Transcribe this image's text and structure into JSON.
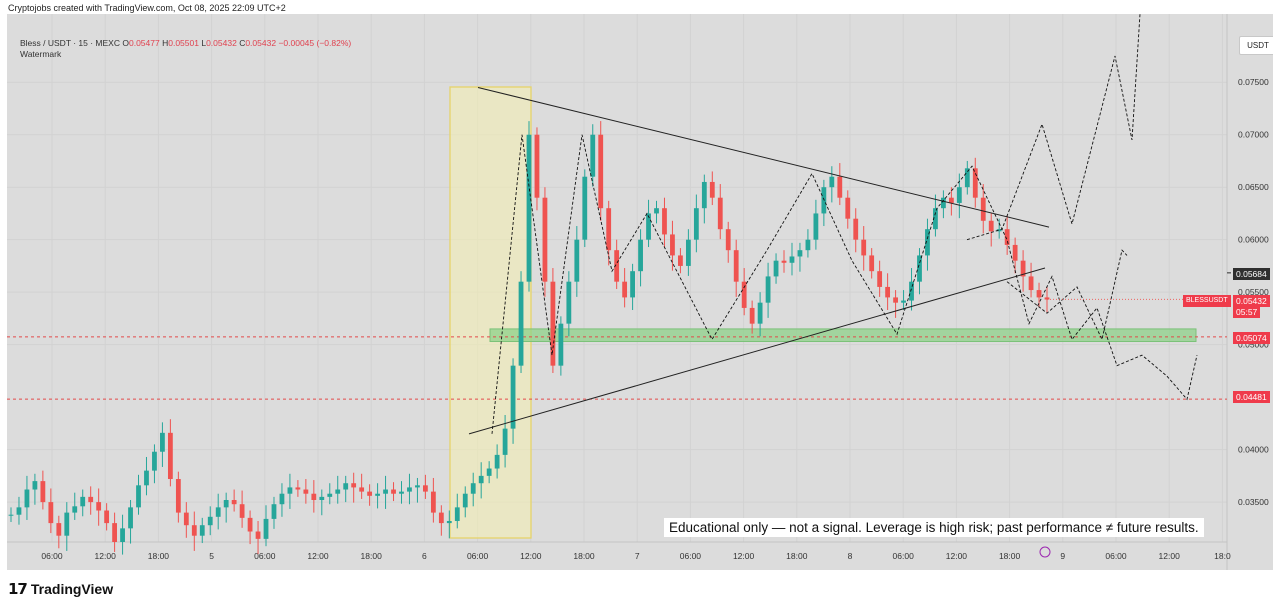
{
  "caption": "Cryptojobs created with TradingView.com, Oct 08, 2025 22:09 UTC+2",
  "legend": {
    "symbol": "Bless / USDT · 15 · MEXC",
    "open_label": "O",
    "open": "0.05477",
    "high_label": "H",
    "high": "0.05501",
    "low_label": "L",
    "low": "0.05432",
    "close_label": "C",
    "close": "0.05432",
    "change": "−0.00045 (−0.82%)",
    "watermark": "Watermark"
  },
  "currency_button": "USDT",
  "disclaimer": "Educational only — not a signal. Leverage is high risk; past performance ≠ future results.",
  "footer_brand": "TradingView",
  "badges": {
    "level_05684": "0.05684",
    "symbol_tag": "BLESSUSDT",
    "last_price": "0.05432",
    "countdown": "05:57",
    "level_05074": "0.05074",
    "level_04481": "0.04481"
  },
  "colors": {
    "up": "#26a69a",
    "down": "#ef5350",
    "support_zone": "#8fd18a",
    "highlight_zone": "#f5f0b0",
    "dashed_level": "#e34a4a"
  },
  "chart_data": {
    "type": "candlestick",
    "y_axis": {
      "ylim": [
        0.0312,
        0.0815
      ],
      "ticks": [
        "0.07500",
        "0.07000",
        "0.06500",
        "0.06000",
        "0.05500",
        "0.05000",
        "0.04000",
        "0.03500"
      ]
    },
    "x_axis": {
      "ticks": [
        "06:00",
        "12:00",
        "18:00",
        "5",
        "06:00",
        "12:00",
        "18:00",
        "6",
        "06:00",
        "12:00",
        "18:00",
        "7",
        "06:00",
        "12:00",
        "18:00",
        "8",
        "06:00",
        "12:00",
        "18:00",
        "9",
        "06:00",
        "12:00",
        "18:0"
      ]
    },
    "close_series": [
      0.0338,
      0.0345,
      0.0362,
      0.037,
      0.035,
      0.033,
      0.0318,
      0.034,
      0.0346,
      0.0355,
      0.035,
      0.0342,
      0.033,
      0.0312,
      0.0325,
      0.0345,
      0.0366,
      0.038,
      0.0398,
      0.0416,
      0.0372,
      0.034,
      0.0328,
      0.0318,
      0.0328,
      0.0336,
      0.0345,
      0.0352,
      0.0348,
      0.0335,
      0.0322,
      0.0315,
      0.0334,
      0.0348,
      0.0358,
      0.0364,
      0.0362,
      0.0358,
      0.0352,
      0.0355,
      0.0358,
      0.0362,
      0.0368,
      0.0364,
      0.036,
      0.0356,
      0.0358,
      0.0362,
      0.0358,
      0.036,
      0.0364,
      0.0366,
      0.036,
      0.034,
      0.033,
      0.0332,
      0.0345,
      0.0358,
      0.0368,
      0.0375,
      0.0382,
      0.0395,
      0.042,
      0.048,
      0.056,
      0.07,
      0.064,
      0.056,
      0.048,
      0.052,
      0.056,
      0.06,
      0.066,
      0.07,
      0.063,
      0.059,
      0.056,
      0.0545,
      0.057,
      0.06,
      0.0625,
      0.063,
      0.0605,
      0.0585,
      0.0575,
      0.06,
      0.063,
      0.0655,
      0.064,
      0.061,
      0.059,
      0.056,
      0.0535,
      0.052,
      0.054,
      0.0565,
      0.058,
      0.0578,
      0.0584,
      0.059,
      0.06,
      0.0625,
      0.065,
      0.066,
      0.064,
      0.062,
      0.06,
      0.0585,
      0.057,
      0.0555,
      0.0545,
      0.054,
      0.0542,
      0.056,
      0.0585,
      0.061,
      0.063,
      0.064,
      0.0635,
      0.065,
      0.0668,
      0.064,
      0.0618,
      0.0608,
      0.061,
      0.0595,
      0.058,
      0.0565,
      0.0552,
      0.0545,
      0.0543
    ],
    "levels": [
      {
        "label": "0.05684",
        "value": 0.05684,
        "style": "marker"
      },
      {
        "label": "0.05074",
        "value": 0.05074,
        "style": "dashed"
      },
      {
        "label": "0.04481",
        "value": 0.04481,
        "style": "dashed"
      }
    ],
    "support_zone": [
      0.0503,
      0.0515
    ],
    "triangle": {
      "upper": {
        "from": [
          0.0745
        ],
        "to": [
          0.0612
        ]
      },
      "lower": {
        "from": [
          0.0415
        ],
        "to": [
          0.0573
        ]
      }
    },
    "projection_paths": 3
  }
}
